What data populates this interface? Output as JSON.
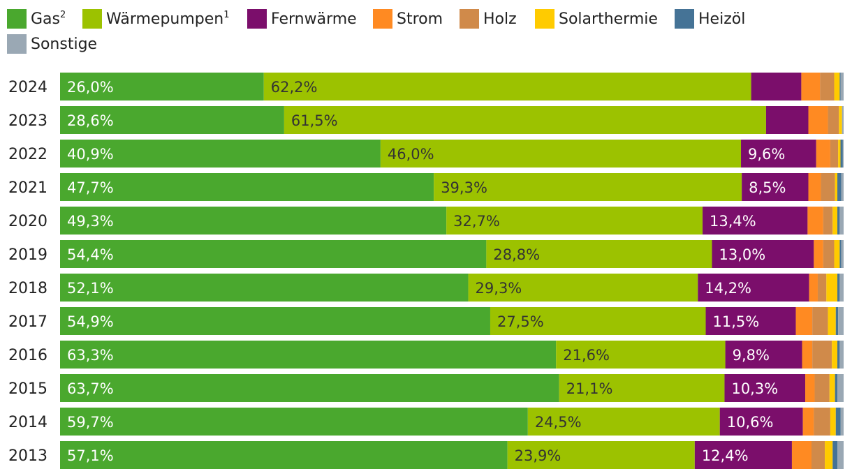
{
  "chart_data": {
    "type": "bar",
    "orientation": "horizontal",
    "stacked": true,
    "percent_stacked": true,
    "legend_position": "top-left",
    "grid": false,
    "xlim": [
      0,
      100
    ],
    "categories": [
      "2024",
      "2023",
      "2022",
      "2021",
      "2020",
      "2019",
      "2018",
      "2017",
      "2016",
      "2015",
      "2014",
      "2013"
    ],
    "series": [
      {
        "name": "Gas",
        "note": "2",
        "color": "#4aa82e",
        "values": [
          26.0,
          28.6,
          40.9,
          47.7,
          49.3,
          54.4,
          52.1,
          54.9,
          63.3,
          63.7,
          59.7,
          57.1
        ],
        "labels": [
          "26,0%",
          "28,6%",
          "40,9%",
          "47,7%",
          "49,3%",
          "54,4%",
          "52,1%",
          "54,9%",
          "63,3%",
          "63,7%",
          "59,7%",
          "57,1%"
        ]
      },
      {
        "name": "Wärmepumpen",
        "note": "1",
        "color": "#9cc200",
        "values": [
          62.2,
          61.5,
          46.0,
          39.3,
          32.7,
          28.8,
          29.3,
          27.5,
          21.6,
          21.1,
          24.5,
          23.9
        ],
        "labels": [
          "62,2%",
          "61,5%",
          "46,0%",
          "39,3%",
          "32,7%",
          "28,8%",
          "29,3%",
          "27,5%",
          "21,6%",
          "21,1%",
          "24,5%",
          "23,9%"
        ]
      },
      {
        "name": "Fernwärme",
        "note": "",
        "color": "#7b0e6b",
        "values": [
          6.4,
          5.4,
          9.6,
          8.5,
          13.4,
          13.0,
          14.2,
          11.5,
          9.8,
          10.3,
          10.6,
          12.4
        ],
        "labels": [
          "",
          "",
          "9,6%",
          "8,5%",
          "13,4%",
          "13,0%",
          "14,2%",
          "11,5%",
          "9,8%",
          "10,3%",
          "10,6%",
          "12,4%"
        ]
      },
      {
        "name": "Strom",
        "note": "",
        "color": "#ff8a22",
        "values": [
          2.4,
          2.5,
          1.8,
          1.6,
          2.0,
          1.2,
          1.1,
          2.1,
          1.3,
          1.2,
          1.4,
          2.5
        ],
        "labels": [
          "",
          "",
          "",
          "",
          "",
          "",
          "",
          "",
          "",
          "",
          "",
          ""
        ]
      },
      {
        "name": "Holz",
        "note": "",
        "color": "#d08a4a",
        "values": [
          1.8,
          1.4,
          1.0,
          1.8,
          1.2,
          1.4,
          1.1,
          2.0,
          2.5,
          1.9,
          2.1,
          1.7
        ]
      },
      {
        "name": "Solarthermie",
        "note": "",
        "color": "#ffcb00",
        "values": [
          0.7,
          0.4,
          0.3,
          0.3,
          0.6,
          0.7,
          1.4,
          1.0,
          0.7,
          0.7,
          0.7,
          1.0
        ]
      },
      {
        "name": "Heizöl",
        "note": "",
        "color": "#457396",
        "values": [
          0.1,
          0.0,
          0.3,
          0.5,
          0.3,
          0.2,
          0.3,
          0.3,
          0.3,
          0.3,
          0.6,
          0.6
        ]
      },
      {
        "name": "Sonstige",
        "note": "",
        "color": "#9aa8b4",
        "values": [
          0.4,
          0.2,
          0.1,
          0.3,
          0.5,
          0.3,
          0.5,
          0.7,
          0.5,
          0.8,
          0.4,
          0.8
        ]
      }
    ]
  }
}
